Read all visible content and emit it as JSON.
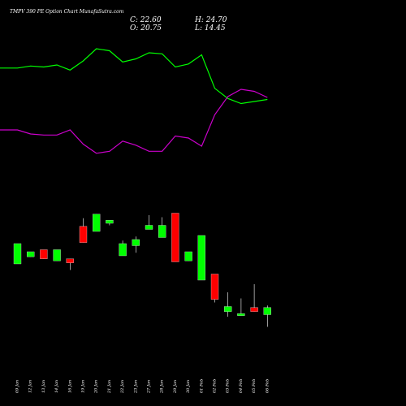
{
  "chart_data": {
    "type": "candlestick",
    "title": "TMPV 390  PE Option  Chart MunafaSutra.com",
    "ohlc_readout": {
      "close_label": "C: 22.60",
      "high_label": "H: 24.70",
      "open_label": "O: 20.75",
      "low_label": "L: 14.45"
    },
    "categories": [
      "09 Jan",
      "12 Jan",
      "13 Jan",
      "14 Jan",
      "16 Jan",
      "19 Jan",
      "20 Jan",
      "21 Jan",
      "22 Jan",
      "23 Jan",
      "27 Jan",
      "28 Jan",
      "29 Jan",
      "30 Jan",
      "01 Feb",
      "02 Feb",
      "03 Feb",
      "04 Feb",
      "05 Feb",
      "06 Feb"
    ],
    "candles": [
      {
        "open": 140,
        "close": 160,
        "high": 160,
        "low": 140,
        "color": "green"
      },
      {
        "open": 147,
        "close": 152,
        "high": 152,
        "low": 147,
        "color": "green"
      },
      {
        "open": 154,
        "close": 145,
        "high": 154,
        "low": 145,
        "color": "red"
      },
      {
        "open": 143,
        "close": 154,
        "high": 154,
        "low": 143,
        "color": "green"
      },
      {
        "open": 145,
        "close": 141,
        "high": 145,
        "low": 134,
        "color": "red"
      },
      {
        "open": 177,
        "close": 161,
        "high": 185,
        "low": 161,
        "color": "red"
      },
      {
        "open": 172,
        "close": 189,
        "high": 189,
        "low": 172,
        "color": "green"
      },
      {
        "open": 180,
        "close": 183,
        "high": 183,
        "low": 178,
        "color": "green"
      },
      {
        "open": 148,
        "close": 160,
        "high": 163,
        "low": 148,
        "color": "green"
      },
      {
        "open": 158,
        "close": 164,
        "high": 167,
        "low": 151,
        "color": "green"
      },
      {
        "open": 174,
        "close": 178,
        "high": 188,
        "low": 174,
        "color": "green"
      },
      {
        "open": 166,
        "close": 178,
        "high": 186,
        "low": 166,
        "color": "green"
      },
      {
        "open": 190,
        "close": 142,
        "high": 190,
        "low": 142,
        "color": "red"
      },
      {
        "open": 143,
        "close": 152,
        "high": 152,
        "low": 143,
        "color": "green"
      },
      {
        "open": 124,
        "close": 168,
        "high": 168,
        "low": 124,
        "color": "green"
      },
      {
        "open": 130,
        "close": 105,
        "high": 130,
        "low": 102,
        "color": "red"
      },
      {
        "open": 93,
        "close": 98,
        "high": 112,
        "low": 88,
        "color": "green"
      },
      {
        "open": 89,
        "close": 91,
        "high": 106,
        "low": 89,
        "color": "green"
      },
      {
        "open": 97,
        "close": 93,
        "high": 120,
        "low": 93,
        "color": "red"
      },
      {
        "open": 90,
        "close": 97,
        "high": 99,
        "low": 78,
        "color": "green"
      }
    ],
    "upper_line": [
      333,
      333,
      335,
      334,
      336,
      331,
      340,
      352,
      350,
      339,
      342,
      348,
      347,
      334,
      337,
      346,
      313,
      303,
      298,
      300,
      302
    ],
    "lower_line": [
      272,
      272,
      268,
      267,
      267,
      272,
      258,
      249,
      251,
      261,
      257,
      251,
      251,
      266,
      264,
      256,
      287,
      305,
      312,
      310,
      304
    ],
    "y_range": [
      0,
      400
    ],
    "colors": {
      "background": "#000000",
      "up": "#00ff00",
      "down": "#ff0000",
      "upper_line": "#00ff00",
      "lower_line": "#cc00cc",
      "wick": "#ffffff",
      "text": "#ffffff"
    }
  }
}
